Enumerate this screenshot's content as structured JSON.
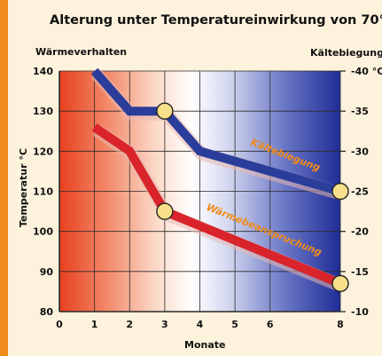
{
  "chart_data": {
    "type": "line",
    "title": "Alterung unter Temperatureinwirkung von 70°C",
    "xlabel": "Monate",
    "ylabel": "Temperatur °C",
    "left_axis_header": "Wärmeverhalten",
    "right_axis_header": "Kältebiegung",
    "x_ticks": [
      "0",
      "1",
      "2",
      "3",
      "4",
      "5",
      "6",
      "8"
    ],
    "x_tick_values": [
      0,
      1,
      2,
      3,
      4,
      5,
      6,
      8
    ],
    "y_ticks": [
      "80",
      "90",
      "100",
      "110",
      "120",
      "130",
      "140"
    ],
    "y_tick_values": [
      80,
      90,
      100,
      110,
      120,
      130,
      140
    ],
    "y2_ticks": [
      "-40 °C",
      "-35",
      "-30",
      "-25",
      "-20",
      "-15",
      "-10"
    ],
    "xlim": [
      0,
      8
    ],
    "ylim": [
      80,
      140
    ],
    "y2lim": [
      -10,
      -40
    ],
    "grid": true,
    "series": [
      {
        "name": "Kältebiegung",
        "axis": "right",
        "color": "#2a3d9a",
        "x": [
          1,
          2,
          3,
          4,
          8
        ],
        "values": [
          -40,
          -35,
          -35,
          -30,
          -25
        ],
        "marked_x": [
          3,
          8
        ]
      },
      {
        "name": "Wärmebeanspruchung",
        "axis": "left",
        "color": "#d8242a",
        "x": [
          1,
          2,
          3,
          8
        ],
        "values": [
          126,
          120,
          105,
          87
        ],
        "marked_x": [
          3,
          8
        ]
      }
    ]
  }
}
